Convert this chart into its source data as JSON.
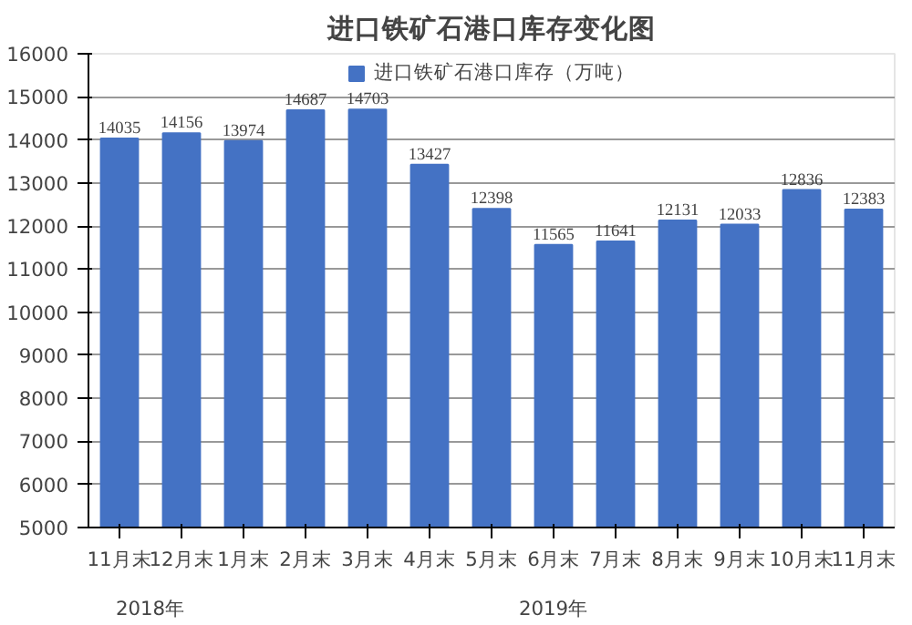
{
  "chart_data": {
    "type": "bar",
    "title": "进口铁矿石港口库存变化图",
    "categories": [
      "11月末",
      "12月末",
      "1月末",
      "2月末",
      "3月末",
      "4月末",
      "5月末",
      "6月末",
      "7月末",
      "8月末",
      "9月末",
      "10月末",
      "11月末"
    ],
    "series": [
      {
        "name": "进口铁矿石港口库存（万吨）",
        "color": "#4472c4",
        "values": [
          14035,
          14156,
          13974,
          14687,
          14703,
          13427,
          12398,
          11565,
          11641,
          12131,
          12033,
          12836,
          12383
        ]
      }
    ],
    "ylim": [
      5000,
      16000
    ],
    "yticks": [
      5000,
      6000,
      7000,
      8000,
      9000,
      10000,
      11000,
      12000,
      13000,
      14000,
      15000,
      16000
    ],
    "grid": "y",
    "legend": "top",
    "data_labels": true,
    "annotations": [
      "2018年",
      "2019年"
    ]
  }
}
